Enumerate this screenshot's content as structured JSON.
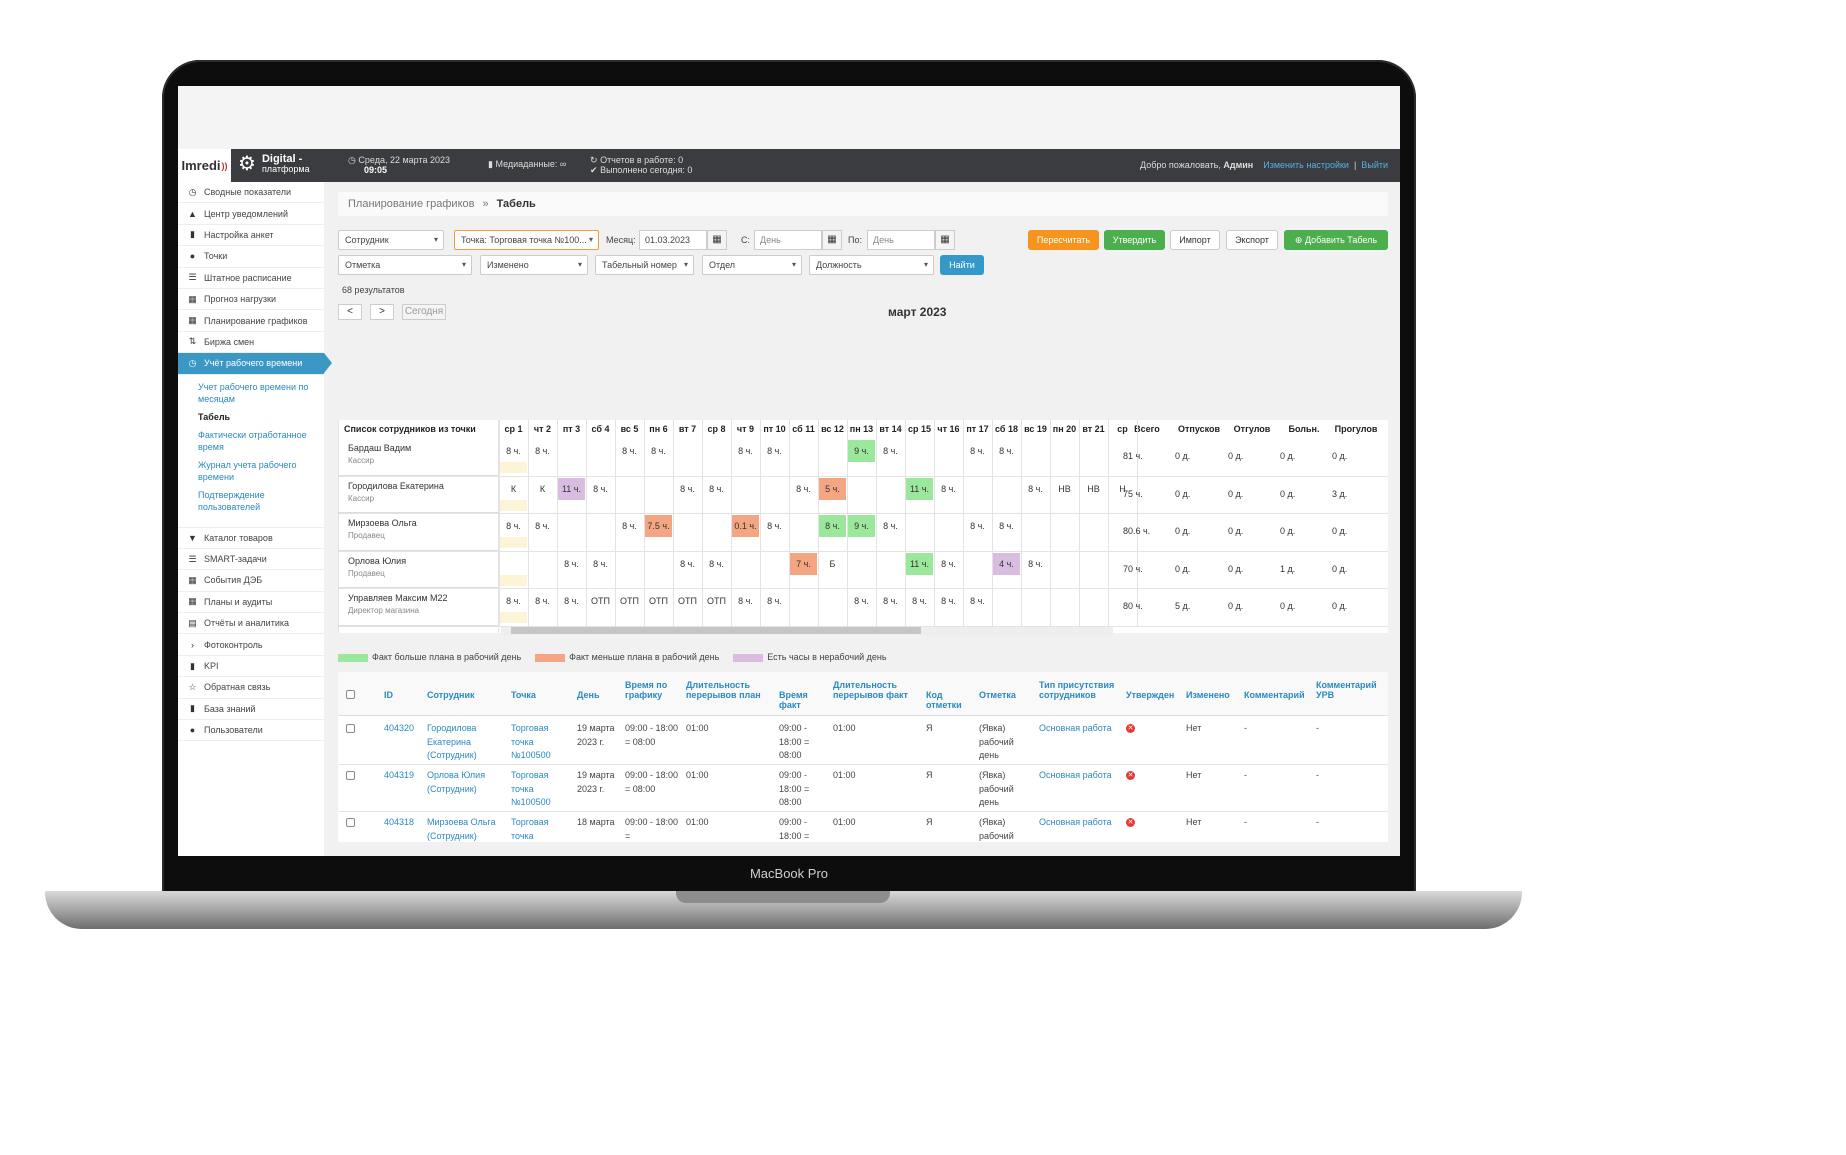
{
  "device": {
    "label": "MacBook Pro"
  },
  "header": {
    "logo_text": "Imredi",
    "product_line1": "Digital -",
    "product_line2": "платформа",
    "date": "Среда, 22 марта 2023",
    "time": "09:05",
    "media": "Медиаданные: ∞",
    "reports_in_work": "Отчетов в работе: 0",
    "done_today": "Выполнено сегодня: 0",
    "welcome": "Добро пожаловать,",
    "user": "Админ",
    "settings_link": "Изменить настройки",
    "separator": "|",
    "logout_link": "Выйти"
  },
  "sidebar": {
    "items_top": [
      {
        "icon": "gauge-icon",
        "glyph": "◷",
        "label": "Сводные показатели"
      },
      {
        "icon": "bell-icon",
        "glyph": "▲",
        "label": "Центр уведомлений"
      },
      {
        "icon": "document-icon",
        "glyph": "▮",
        "label": "Настройка анкет"
      },
      {
        "icon": "globe-icon",
        "glyph": "●",
        "label": "Точки"
      },
      {
        "icon": "list-icon",
        "glyph": "☰",
        "label": "Штатное расписание"
      },
      {
        "icon": "table-icon",
        "glyph": "▦",
        "label": "Прогноз нагрузки"
      },
      {
        "icon": "table-icon",
        "glyph": "▦",
        "label": "Планирование графиков"
      },
      {
        "icon": "sort-icon",
        "glyph": "⇅",
        "label": "Биржа смен"
      },
      {
        "icon": "clock-icon",
        "glyph": "◷",
        "label": "Учёт рабочего времени"
      }
    ],
    "subitems": [
      "Учет рабочего времени по месяцам",
      "Табель",
      "Фактически отработанное время",
      "Журнал учета рабочего времени",
      "Подтверждение пользователей"
    ],
    "items_bottom": [
      {
        "icon": "cart-icon",
        "glyph": "▼",
        "label": "Каталог товаров"
      },
      {
        "icon": "list-icon",
        "glyph": "☰",
        "label": "SMART-задачи"
      },
      {
        "icon": "table-icon",
        "glyph": "▦",
        "label": "События ДЭБ"
      },
      {
        "icon": "table-icon",
        "glyph": "▦",
        "label": "Планы и аудиты"
      },
      {
        "icon": "report-icon",
        "glyph": "▤",
        "label": "Отчёты и аналитика"
      },
      {
        "icon": "chevron-right-icon",
        "glyph": "›",
        "label": "Фотоконтроль"
      },
      {
        "icon": "bar-chart-icon",
        "glyph": "▮",
        "label": "KPI"
      },
      {
        "icon": "star-icon",
        "glyph": "☆",
        "label": "Обратная связь"
      },
      {
        "icon": "book-icon",
        "glyph": "▮",
        "label": "База знаний"
      },
      {
        "icon": "user-icon",
        "glyph": "●",
        "label": "Пользователи"
      }
    ]
  },
  "breadcrumb": {
    "parent": "Планирование графиков",
    "sep": "»",
    "current": "Табель"
  },
  "filters": {
    "employee": "Сотрудник",
    "point": "Точка: Торговая точка №100...",
    "month_label": "Месяц:",
    "month_value": "01.03.2023",
    "from_label": "С:",
    "from_placeholder": "День",
    "to_label": "По:",
    "to_placeholder": "День",
    "mark": "Отметка",
    "changed": "Изменено",
    "tab_number": "Табельный номер",
    "department": "Отдел",
    "position": "Должность",
    "find": "Найти"
  },
  "actions": {
    "recalc": "Пересчитать",
    "approve": "Утвердить",
    "import": "Импорт",
    "export": "Экспорт",
    "add": "Добавить Табель"
  },
  "results": "68 результатов",
  "calendar_nav": {
    "prev": "<",
    "next": ">",
    "today": "Сегодня",
    "month": "март 2023"
  },
  "schedule": {
    "list_header": "Список сотрудников из точки",
    "days": [
      "ср 1",
      "чт 2",
      "пт 3",
      "сб 4",
      "вс 5",
      "пн 6",
      "вт 7",
      "ср 8",
      "чт 9",
      "пт 10",
      "сб 11",
      "вс 12",
      "пн 13",
      "вт 14",
      "ср 15",
      "чт 16",
      "пт 17",
      "сб 18",
      "вс 19",
      "пн 20",
      "вт 21",
      "ср"
    ],
    "stat_headers": [
      "Всего",
      "Отпусков",
      "Отгулов",
      "Больн.",
      "Прогулов"
    ],
    "employees": [
      {
        "name": "Бардаш Вадим",
        "role": "Кассир",
        "cells": [
          "8 ч.",
          "8 ч.",
          "",
          "",
          "8 ч.",
          "8 ч.",
          "",
          "",
          "8 ч.",
          "8 ч.",
          "",
          "",
          "9 ч.",
          "8 ч.",
          "",
          "",
          "8 ч.",
          "8 ч.",
          "",
          "",
          "",
          ""
        ],
        "colors": {
          "12": "green"
        },
        "stats": [
          "81 ч.",
          "0 д.",
          "0 д.",
          "0 д.",
          "0 д."
        ]
      },
      {
        "name": "Городилова Екатерина",
        "role": "Кассир",
        "cells": [
          "К",
          "К",
          "11 ч.",
          "8 ч.",
          "",
          "",
          "8 ч.",
          "8 ч.",
          "",
          "",
          "8 ч.",
          "5 ч.",
          "",
          "",
          "11 ч.",
          "8 ч.",
          "",
          "",
          "8 ч.",
          "НВ",
          "НВ",
          "Н"
        ],
        "colors": {
          "2": "purple",
          "11": "orange",
          "14": "green"
        },
        "stats": [
          "75 ч.",
          "0 д.",
          "0 д.",
          "0 д.",
          "3 д."
        ]
      },
      {
        "name": "Мирзоева Ольга",
        "role": "Продавец",
        "cells": [
          "8 ч.",
          "8 ч.",
          "",
          "",
          "8 ч.",
          "7.5 ч.",
          "",
          "",
          "0.1 ч.",
          "8 ч.",
          "",
          "8 ч.",
          "9 ч.",
          "8 ч.",
          "",
          "",
          "8 ч.",
          "8 ч.",
          "",
          "",
          "",
          ""
        ],
        "colors": {
          "5": "orange",
          "8": "orange",
          "11": "green",
          "12": "green"
        },
        "stats": [
          "80.6 ч.",
          "0 д.",
          "0 д.",
          "0 д.",
          "0 д."
        ]
      },
      {
        "name": "Орлова Юлия",
        "role": "Продавец",
        "cells": [
          "",
          "",
          "8 ч.",
          "8 ч.",
          "",
          "",
          "8 ч.",
          "8 ч.",
          "",
          "",
          "7 ч.",
          "Б",
          "",
          "",
          "11 ч.",
          "8 ч.",
          "",
          "4 ч.",
          "8 ч.",
          "",
          "",
          ""
        ],
        "colors": {
          "10": "orange",
          "14": "green",
          "17": "purple"
        },
        "stats": [
          "70 ч.",
          "0 д.",
          "0 д.",
          "1 д.",
          "0 д."
        ]
      },
      {
        "name": "Управляев Максим М22",
        "role": "Директор магазина",
        "cells": [
          "8 ч.",
          "8 ч.",
          "8 ч.",
          "ОТП",
          "ОТП",
          "ОТП",
          "ОТП",
          "ОТП",
          "8 ч.",
          "8 ч.",
          "",
          "",
          "8 ч.",
          "8 ч.",
          "8 ч.",
          "8 ч.",
          "8 ч.",
          "",
          "",
          "",
          "",
          ""
        ],
        "colors": {},
        "stats": [
          "80 ч.",
          "5 д.",
          "0 д.",
          "0 д.",
          "0 д."
        ]
      }
    ]
  },
  "legend": [
    {
      "label": "Факт больше плана в рабочий день",
      "color": "#9be79b"
    },
    {
      "label": "Факт меньше плана в рабочий день",
      "color": "#f4a582"
    },
    {
      "label": "Есть часы в нерабочий день",
      "color": "#d8bde0"
    }
  ],
  "colors": {
    "green": "#9be79b",
    "orange": "#f4a582",
    "purple": "#d8bde0"
  },
  "records": {
    "headers": [
      "ID",
      "Сотрудник",
      "Точка",
      "День",
      "Время по графику",
      "Длительность перерывов план",
      "Время факт",
      "Длительность перерывов факт",
      "Код отметки",
      "Отметка",
      "Тип присутствия сотрудников",
      "Утвержден",
      "Изменено",
      "Комментарий",
      "Комментарий УРВ"
    ],
    "rows": [
      {
        "id": "404320",
        "employee": "Городилова Екатерина (Сотрудник)",
        "point": "Торговая точка №100500",
        "day": "19 марта 2023 г.",
        "plan_time": "09:00 - 18:00 = 08:00",
        "plan_break": "01:00",
        "fact_time": "09:00 - 18:00 = 08:00",
        "fact_break": "01:00",
        "code": "Я",
        "mark": "(Явка) рабочий день",
        "presence": "Основная работа",
        "changed": "Нет",
        "comment": "-",
        "comment_urv": "-"
      },
      {
        "id": "404319",
        "employee": "Орлова Юлия (Сотрудник)",
        "point": "Торговая точка №100500",
        "day": "19 марта 2023 г.",
        "plan_time": "09:00 - 18:00 = 08:00",
        "plan_break": "01:00",
        "fact_time": "09:00 - 18:00 = 08:00",
        "fact_break": "01:00",
        "code": "Я",
        "mark": "(Явка) рабочий день",
        "presence": "Основная работа",
        "changed": "Нет",
        "comment": "-",
        "comment_urv": "-"
      },
      {
        "id": "404318",
        "employee": "Мирзоева Ольга (Сотрудник)",
        "point": "Торговая точка",
        "day": "18 марта",
        "plan_time": "09:00 - 18:00 =",
        "plan_break": "01:00",
        "fact_time": "09:00 - 18:00 =",
        "fact_break": "01:00",
        "code": "Я",
        "mark": "(Явка) рабочий",
        "presence": "Основная работа",
        "changed": "Нет",
        "comment": "-",
        "comment_urv": "-"
      }
    ]
  }
}
